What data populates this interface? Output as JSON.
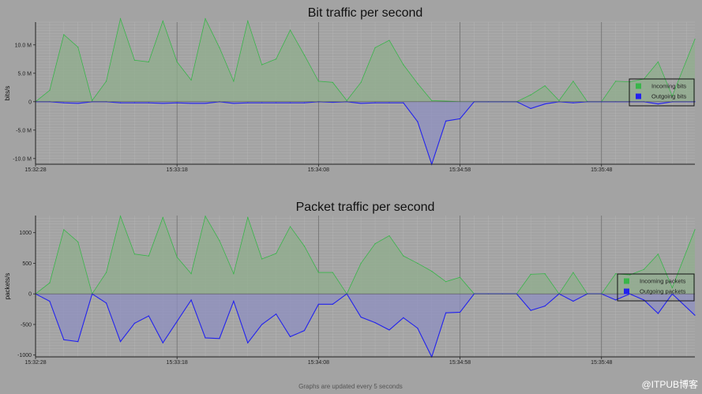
{
  "footer_note": "Graphs are updated every 5 seconds",
  "watermark": "@ITPUB博客",
  "chart_data": [
    {
      "type": "area",
      "title": "Bit traffic per second",
      "xlabel": "",
      "ylabel": "bits/s",
      "x_tick_labels": [
        "15:32:28",
        "15:33:18",
        "15:34:08",
        "15:34:58",
        "15:35:48"
      ],
      "y_tick_labels": [
        "10.0 M",
        "5.0 M",
        "0",
        "-5.0 M",
        "-10.0 M"
      ],
      "y_tick_values": [
        10000000,
        5000000,
        0,
        -5000000,
        -10000000
      ],
      "ylim": [
        -11000000,
        14000000
      ],
      "x_range_seconds": [
        0,
        233
      ],
      "x_tick_seconds": [
        0,
        50,
        100,
        150,
        200
      ],
      "grid": true,
      "legend_position": "right",
      "series": [
        {
          "name": "Incoming bits",
          "color": "#39b54a",
          "fill": "#8fae8c",
          "x_seconds": [
            0,
            5,
            10,
            15,
            20,
            25,
            30,
            35,
            40,
            45,
            50,
            55,
            60,
            65,
            70,
            75,
            80,
            85,
            90,
            95,
            100,
            105,
            110,
            115,
            120,
            125,
            130,
            135,
            140,
            145,
            150,
            155,
            160,
            165,
            170,
            175,
            180,
            185,
            190,
            195,
            200,
            205,
            210,
            215,
            220,
            225,
            233
          ],
          "values": [
            0,
            2000000,
            11800000,
            9600000,
            200000,
            3600000,
            14600000,
            7300000,
            7000000,
            14200000,
            7000000,
            3800000,
            14600000,
            9500000,
            3600000,
            14200000,
            6500000,
            7500000,
            12600000,
            8200000,
            3600000,
            3400000,
            200000,
            3400000,
            9500000,
            10800000,
            6500000,
            3200000,
            200000,
            100000,
            0,
            0,
            0,
            0,
            0,
            1200000,
            2800000,
            200000,
            3600000,
            0,
            0,
            3600000,
            3500000,
            4000000,
            7000000,
            1000000,
            11000000
          ]
        },
        {
          "name": "Outgoing bits",
          "color": "#2222ee",
          "fill": "#8d8fc0",
          "x_seconds": [
            0,
            5,
            10,
            15,
            20,
            25,
            30,
            35,
            40,
            45,
            50,
            55,
            60,
            65,
            70,
            75,
            80,
            85,
            90,
            95,
            100,
            105,
            110,
            115,
            120,
            125,
            130,
            135,
            140,
            145,
            150,
            155,
            160,
            165,
            170,
            175,
            180,
            185,
            190,
            195,
            200,
            205,
            210,
            215,
            220,
            225,
            233
          ],
          "values": [
            0,
            0,
            -200000,
            -300000,
            0,
            0,
            -200000,
            -200000,
            -200000,
            -300000,
            -200000,
            -300000,
            -300000,
            0,
            -300000,
            -200000,
            -200000,
            -200000,
            -200000,
            -200000,
            0,
            -100000,
            0,
            -300000,
            -200000,
            -200000,
            -200000,
            -3500000,
            -11000000,
            -3400000,
            -3000000,
            0,
            0,
            0,
            0,
            -1200000,
            -400000,
            0,
            -200000,
            0,
            0,
            0,
            0,
            0,
            -400000,
            0,
            0
          ]
        }
      ]
    },
    {
      "type": "area",
      "title": "Packet traffic per second",
      "xlabel": "",
      "ylabel": "packets/s",
      "x_tick_labels": [
        "15:32:28",
        "15:33:18",
        "15:34:08",
        "15:34:58",
        "15:35:48"
      ],
      "y_tick_labels": [
        "1000",
        "500",
        "0",
        "-500",
        "-1000"
      ],
      "y_tick_values": [
        1000,
        500,
        0,
        -500,
        -1000
      ],
      "ylim": [
        -1030,
        1280
      ],
      "x_range_seconds": [
        0,
        233
      ],
      "x_tick_seconds": [
        0,
        50,
        100,
        150,
        200
      ],
      "grid": true,
      "legend_position": "right",
      "series": [
        {
          "name": "Incoming packets",
          "color": "#39b54a",
          "fill": "#8fae8c",
          "x_seconds": [
            0,
            5,
            10,
            15,
            20,
            25,
            30,
            35,
            40,
            45,
            50,
            55,
            60,
            65,
            70,
            75,
            80,
            85,
            90,
            95,
            100,
            105,
            110,
            115,
            120,
            125,
            130,
            135,
            140,
            145,
            150,
            155,
            160,
            165,
            170,
            175,
            180,
            185,
            190,
            195,
            200,
            205,
            210,
            215,
            220,
            225,
            233
          ],
          "values": [
            0,
            180,
            1050,
            850,
            0,
            350,
            1270,
            650,
            620,
            1250,
            600,
            330,
            1270,
            870,
            330,
            1250,
            570,
            660,
            1100,
            780,
            350,
            350,
            0,
            500,
            820,
            950,
            620,
            500,
            370,
            200,
            270,
            0,
            0,
            0,
            0,
            320,
            330,
            0,
            350,
            0,
            0,
            330,
            310,
            400,
            650,
            100,
            1050
          ]
        },
        {
          "name": "Outgoing packets",
          "color": "#2222ee",
          "fill": "#8d8fc0",
          "x_seconds": [
            0,
            5,
            10,
            15,
            20,
            25,
            30,
            35,
            40,
            45,
            50,
            55,
            60,
            65,
            70,
            75,
            80,
            85,
            90,
            95,
            100,
            105,
            110,
            115,
            120,
            125,
            130,
            135,
            140,
            145,
            150,
            155,
            160,
            165,
            170,
            175,
            180,
            185,
            190,
            195,
            200,
            205,
            210,
            215,
            220,
            225,
            233
          ],
          "values": [
            0,
            -120,
            -750,
            -780,
            0,
            -150,
            -780,
            -480,
            -360,
            -800,
            -450,
            -100,
            -720,
            -730,
            -120,
            -800,
            -500,
            -330,
            -700,
            -600,
            -170,
            -170,
            0,
            -380,
            -470,
            -590,
            -390,
            -560,
            -1030,
            -310,
            -300,
            0,
            0,
            0,
            0,
            -270,
            -200,
            0,
            -120,
            0,
            0,
            -100,
            0,
            -100,
            -320,
            0,
            -350
          ]
        }
      ]
    }
  ]
}
